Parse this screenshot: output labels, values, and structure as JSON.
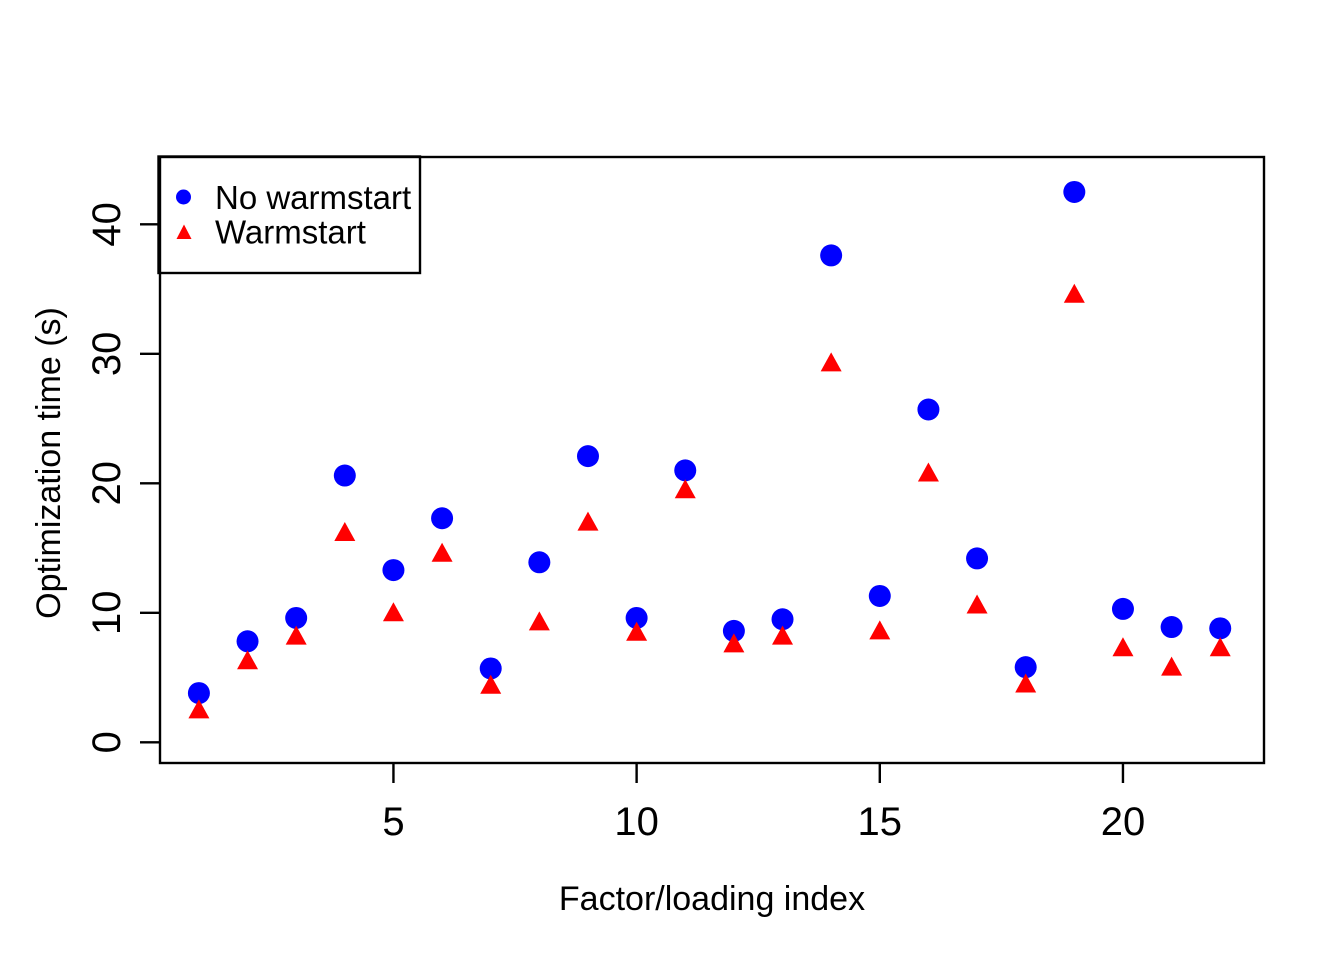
{
  "figure": {
    "background": "#ffffff",
    "foreground": "#000000"
  },
  "chart_data": {
    "type": "scatter",
    "title": "",
    "xlabel": "Factor/loading index",
    "ylabel": "Optimization time (s)",
    "x": [
      1,
      2,
      3,
      4,
      5,
      6,
      7,
      8,
      9,
      10,
      11,
      12,
      13,
      14,
      15,
      16,
      17,
      18,
      19,
      20,
      21,
      22
    ],
    "series": [
      {
        "name": "No warmstart",
        "marker": "circle",
        "color": "#0000ff",
        "values": [
          3.8,
          7.8,
          9.6,
          20.6,
          13.3,
          17.3,
          5.7,
          13.9,
          22.1,
          9.6,
          21.0,
          8.6,
          9.5,
          37.6,
          11.3,
          25.7,
          14.2,
          5.8,
          42.5,
          10.3,
          8.9,
          8.8
        ]
      },
      {
        "name": "Warmstart",
        "marker": "triangle",
        "color": "#ff0000",
        "values": [
          2.5,
          6.3,
          8.2,
          16.2,
          10.0,
          14.6,
          4.4,
          9.3,
          17.0,
          8.5,
          19.5,
          7.6,
          8.2,
          29.3,
          8.6,
          20.8,
          10.6,
          4.5,
          34.6,
          7.3,
          5.8,
          7.3
        ]
      }
    ],
    "x_ticks": [
      5,
      10,
      15,
      20
    ],
    "y_ticks": [
      0,
      10,
      20,
      30,
      40
    ],
    "xlim": [
      0.2,
      22.9
    ],
    "ylim": [
      -1.6,
      45.2
    ],
    "grid": false,
    "legend": {
      "position": "topleft",
      "entries": [
        "No warmstart",
        "Warmstart"
      ]
    }
  }
}
